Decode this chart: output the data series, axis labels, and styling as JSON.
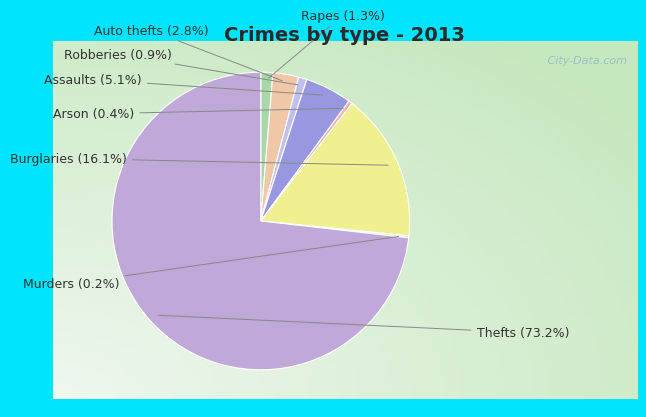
{
  "title": "Crimes by type - 2013",
  "slice_order": [
    {
      "label": "Rapes (1.3%)",
      "value": 1.3,
      "color": "#A8D8A8"
    },
    {
      "label": "Auto thefts (2.8%)",
      "value": 2.8,
      "color": "#F0C8A8"
    },
    {
      "label": "Robberies (0.9%)",
      "value": 0.9,
      "color": "#C0C0F0"
    },
    {
      "label": "Assaults (5.1%)",
      "value": 5.1,
      "color": "#9898E0"
    },
    {
      "label": "Arson (0.4%)",
      "value": 0.4,
      "color": "#F0B0B0"
    },
    {
      "label": "Burglaries (16.1%)",
      "value": 16.1,
      "color": "#F0F090"
    },
    {
      "label": "Murders (0.2%)",
      "value": 0.2,
      "color": "#C0E8D0"
    },
    {
      "label": "Thefts (73.2%)",
      "value": 73.2,
      "color": "#C0A8D8"
    }
  ],
  "title_fontsize": 14,
  "title_color": "#2a2a2a",
  "label_fontsize": 9,
  "cyan_color": "#00E5FF",
  "watermark": " City-Data.com",
  "watermark_color": "#90B8C8"
}
